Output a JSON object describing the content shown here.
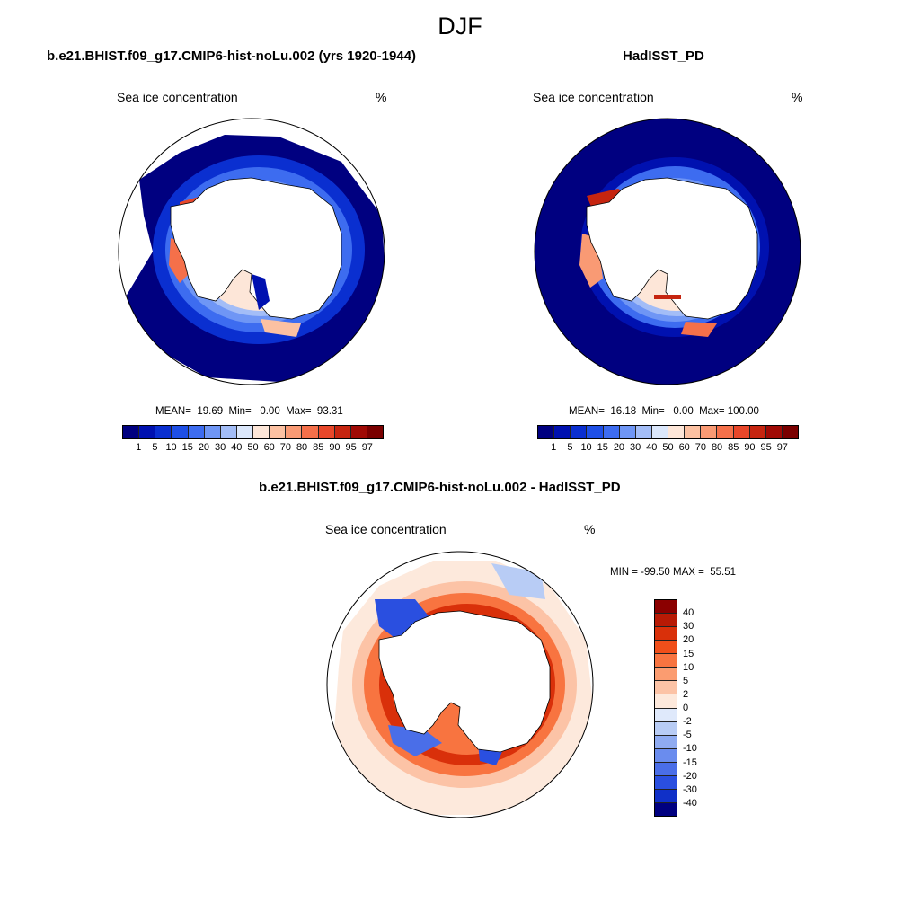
{
  "figure_title": "DJF",
  "panels": {
    "model": {
      "title": "b.e21.BHIST.f09_g17.CMIP6-hist-noLu.002 (yrs 1920-1944)",
      "variable": "Sea ice concentration",
      "units": "%",
      "stats": "MEAN=  19.69  Min=   0.00  Max=  93.31"
    },
    "obs": {
      "title": "HadISST_PD",
      "variable": "Sea ice concentration",
      "units": "%",
      "stats": "MEAN=  16.18  Min=   0.00  Max= 100.00"
    },
    "diff": {
      "title": "b.e21.BHIST.f09_g17.CMIP6-hist-noLu.002 - HadISST_PD",
      "variable": "Sea ice concentration",
      "units": "%",
      "stats": "MIN = -99.50 MAX =  55.51"
    }
  },
  "chart_data": [
    {
      "type": "heatmap",
      "projection": "south-polar-stereographic",
      "title": "b.e21.BHIST.f09_g17.CMIP6-hist-noLu.002 (yrs 1920-1944)",
      "variable": "Sea ice concentration",
      "units": "%",
      "mean": 19.69,
      "min": 0.0,
      "max": 93.31,
      "colorbar_levels": [
        "1",
        "5",
        "10",
        "15",
        "20",
        "30",
        "40",
        "50",
        "60",
        "70",
        "80",
        "85",
        "90",
        "95",
        "97"
      ],
      "colorbar_colors": [
        "#000080",
        "#0011b0",
        "#0a2fd0",
        "#1e4fe6",
        "#3d6cf0",
        "#6f96f5",
        "#a3bdf7",
        "#dbe7fb",
        "#fde6d8",
        "#fcc1a2",
        "#f99a74",
        "#f5704a",
        "#e8472a",
        "#c62510",
        "#a00a05",
        "#7a0000"
      ]
    },
    {
      "type": "heatmap",
      "projection": "south-polar-stereographic",
      "title": "HadISST_PD",
      "variable": "Sea ice concentration",
      "units": "%",
      "mean": 16.18,
      "min": 0.0,
      "max": 100.0,
      "colorbar_levels": [
        "1",
        "5",
        "10",
        "15",
        "20",
        "30",
        "40",
        "50",
        "60",
        "70",
        "80",
        "85",
        "90",
        "95",
        "97"
      ],
      "colorbar_colors": [
        "#000080",
        "#0011b0",
        "#0a2fd0",
        "#1e4fe6",
        "#3d6cf0",
        "#6f96f5",
        "#a3bdf7",
        "#dbe7fb",
        "#fde6d8",
        "#fcc1a2",
        "#f99a74",
        "#f5704a",
        "#e8472a",
        "#c62510",
        "#a00a05",
        "#7a0000"
      ]
    },
    {
      "type": "heatmap",
      "projection": "south-polar-stereographic",
      "title": "b.e21.BHIST.f09_g17.CMIP6-hist-noLu.002 - HadISST_PD",
      "variable": "Sea ice concentration",
      "units": "%",
      "min": -99.5,
      "max": 55.51,
      "colorbar_levels": [
        "40",
        "30",
        "20",
        "15",
        "10",
        "5",
        "2",
        "0",
        "-2",
        "-5",
        "-10",
        "-15",
        "-20",
        "-30",
        "-40"
      ],
      "colorbar_colors": [
        "#8b0000",
        "#b81a05",
        "#d9300a",
        "#f04f1a",
        "#f87440",
        "#fb9c70",
        "#fcc3a6",
        "#fde9dc",
        "#dfe9fb",
        "#b8ccf5",
        "#8fabf1",
        "#6a8cee",
        "#4a6ee8",
        "#2a4fe0",
        "#1030c8",
        "#000080"
      ]
    }
  ]
}
